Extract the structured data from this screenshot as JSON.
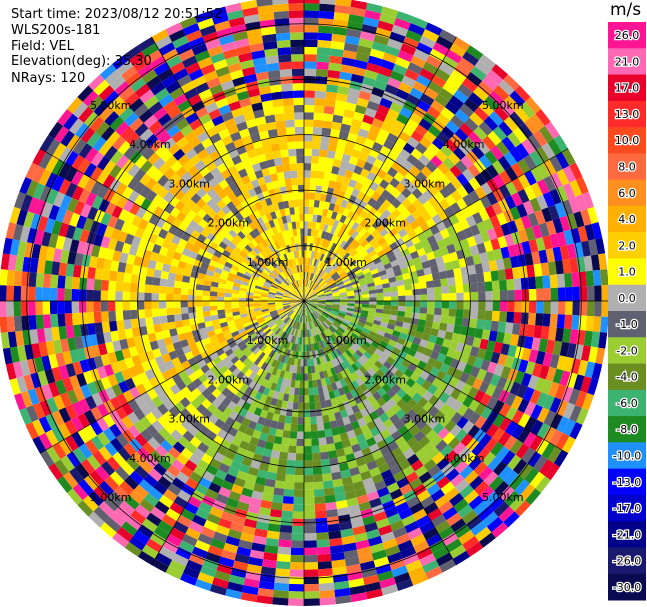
{
  "header": {
    "start_time": "Start time: 2023/08/12 20:51:52",
    "instrument": "WLS200s-181",
    "field": "Field: VEL",
    "elevation": "Elevation(deg): 35.30",
    "nrays": "NRays: 120"
  },
  "colorbar": {
    "unit": "m/s",
    "ticks": [
      "26.0",
      "21.0",
      "17.0",
      "13.0",
      "10.0",
      "8.0",
      "6.0",
      "4.0",
      "2.0",
      "1.0",
      "0.0",
      "-1.0",
      "-2.0",
      "-4.0",
      "-6.0",
      "-8.0",
      "-10.0",
      "-13.0",
      "-17.0",
      "-21.0",
      "-26.0",
      "-30.0"
    ],
    "colors": [
      "#ff1493",
      "#ff69b4",
      "#e8002a",
      "#ff2a2a",
      "#ff4a20",
      "#ff6a40",
      "#ff9020",
      "#ffb000",
      "#ffd000",
      "#ffff00",
      "#b0b0b0",
      "#606070",
      "#9acd32",
      "#6b8e23",
      "#3cb371",
      "#1e8b22",
      "#1e90ff",
      "#0000ff",
      "#0000cd",
      "#00008b",
      "#191970",
      "#0a0a50"
    ]
  },
  "chart_data": {
    "type": "heatmap",
    "projection": "polar PPI",
    "field": "VEL",
    "units": "m/s",
    "nrays": 120,
    "max_range_km": 5.5,
    "range_rings_km": [
      1.0,
      2.0,
      3.0,
      4.0,
      5.0
    ],
    "range_ring_labels": [
      "1.00km",
      "2.00km",
      "3.00km",
      "4.00km",
      "5.00km"
    ],
    "value_levels": [
      -30.0,
      -26.0,
      -21.0,
      -17.0,
      -13.0,
      -10.0,
      -8.0,
      -6.0,
      -4.0,
      -2.0,
      -1.0,
      0.0,
      1.0,
      2.0,
      4.0,
      6.0,
      8.0,
      10.0,
      13.0,
      17.0,
      21.0,
      26.0
    ],
    "sectors": [
      {
        "direction": "north-west quadrant, inner 3 km",
        "dominant_values": [
          2.0,
          4.0
        ],
        "description": "yellow/orange positive velocities"
      },
      {
        "direction": "south-east quadrant, inner 3 km",
        "dominant_values": [
          -2.0,
          -4.0
        ],
        "description": "green negative velocities"
      },
      {
        "direction": "all directions, beyond ~4 km",
        "dominant_values": "noise",
        "description": "random multicolor speckle"
      }
    ]
  }
}
